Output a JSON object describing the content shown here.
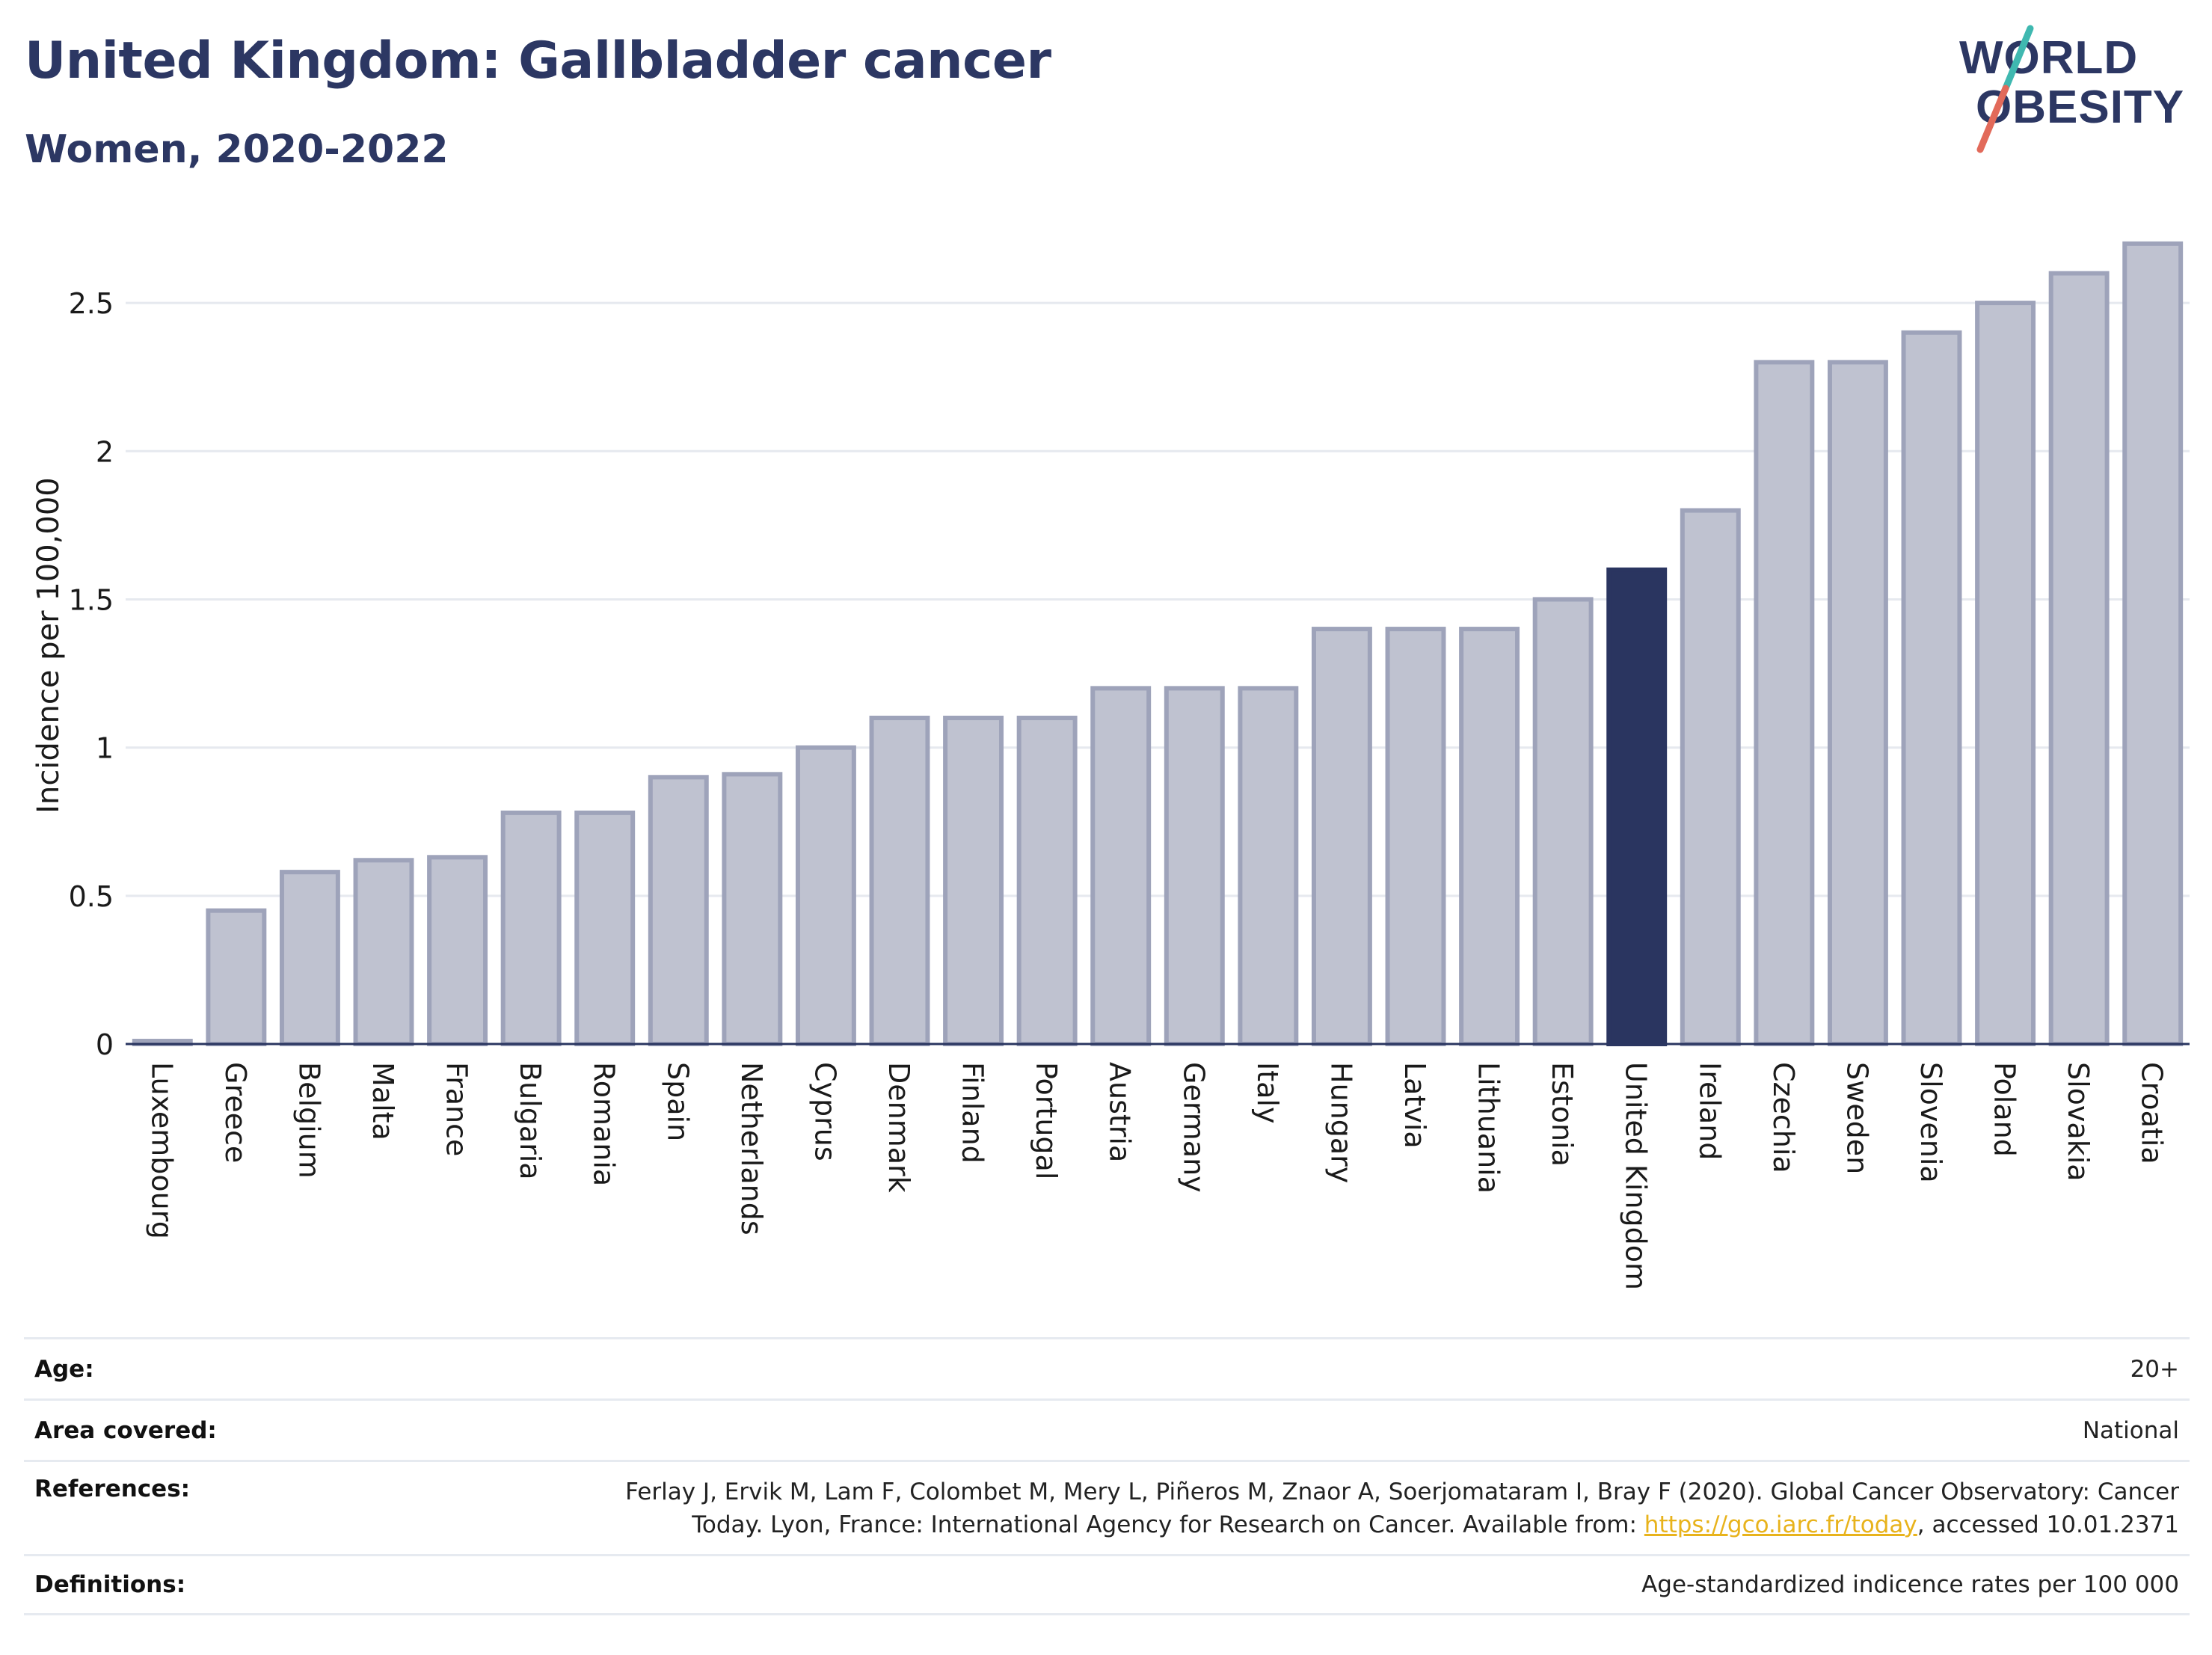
{
  "header": {
    "title": "United Kingdom: Gallbladder cancer",
    "subtitle": "Women, 2020-2022"
  },
  "logo": {
    "line1": "WORLD",
    "line2": "OBESITY",
    "colors": {
      "text": "#2c3763",
      "slash_top": "#3fb8b0",
      "slash_bottom": "#e26a5a"
    }
  },
  "chart_data": {
    "type": "bar",
    "title": "",
    "xlabel": "",
    "ylabel": "Incidence per 100,000",
    "ylim": [
      0,
      2.75
    ],
    "yticks": [
      0,
      0.5,
      1,
      1.5,
      2,
      2.5
    ],
    "ytick_labels": [
      "0",
      "0.5",
      "1",
      "1.5",
      "2",
      "2.5"
    ],
    "grid": true,
    "highlight": "United Kingdom",
    "colors": {
      "bar": "#bfc2d0",
      "bar_border": "#9ea3ba",
      "highlight": "#2a3560"
    },
    "categories": [
      "Luxembourg",
      "Greece",
      "Belgium",
      "Malta",
      "France",
      "Bulgaria",
      "Romania",
      "Spain",
      "Netherlands",
      "Cyprus",
      "Denmark",
      "Finland",
      "Portugal",
      "Austria",
      "Germany",
      "Italy",
      "Hungary",
      "Latvia",
      "Lithuania",
      "Estonia",
      "United Kingdom",
      "Ireland",
      "Czechia",
      "Sweden",
      "Slovenia",
      "Poland",
      "Slovakia",
      "Croatia"
    ],
    "values": [
      0.01,
      0.45,
      0.58,
      0.62,
      0.63,
      0.78,
      0.78,
      0.9,
      0.91,
      1.0,
      1.1,
      1.1,
      1.1,
      1.2,
      1.2,
      1.2,
      1.4,
      1.4,
      1.4,
      1.5,
      1.6,
      1.8,
      2.3,
      2.3,
      2.4,
      2.5,
      2.6,
      2.7
    ]
  },
  "meta": {
    "age": {
      "label": "Age:",
      "value": "20+"
    },
    "area": {
      "label": "Area covered:",
      "value": "National"
    },
    "references": {
      "label": "References:",
      "line1": "Ferlay J, Ervik M, Lam F, Colombet M, Mery L, Piñeros M, Znaor A, Soerjomataram I, Bray F (2020). Global Cancer Observatory: Cancer",
      "line2_pre": "Today. Lyon, France: International Agency for Research on Cancer. Available from: ",
      "link": "https://gco.iarc.fr/today",
      "line2_post": ", accessed 10.01.2371"
    },
    "definitions": {
      "label": "Definitions:",
      "value": "Age-standardized indicence rates per 100 000"
    }
  }
}
